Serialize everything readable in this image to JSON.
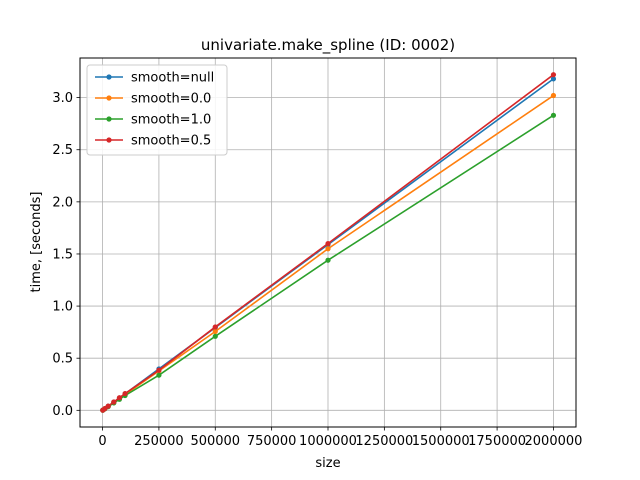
{
  "chart_data": {
    "type": "line",
    "title": "univariate.make_spline (ID: 0002)",
    "xlabel": "size",
    "ylabel": "time, [seconds]",
    "xlim": [
      -100000,
      2100000
    ],
    "ylim": [
      -0.16,
      3.38
    ],
    "xticks": [
      0,
      250000,
      500000,
      750000,
      1000000,
      1250000,
      1500000,
      1750000,
      2000000
    ],
    "xtick_labels": [
      "0",
      "250000",
      "500000",
      "750000",
      "1000000",
      "1250000",
      "1500000",
      "1750000",
      "2000000"
    ],
    "yticks": [
      0.0,
      0.5,
      1.0,
      1.5,
      2.0,
      2.5,
      3.0
    ],
    "ytick_labels": [
      "0.0",
      "0.5",
      "1.0",
      "1.5",
      "2.0",
      "2.5",
      "3.0"
    ],
    "grid": true,
    "legend": "upper-left",
    "x": [
      1000,
      10000,
      25000,
      50000,
      75000,
      100000,
      250000,
      500000,
      1000000,
      2000000
    ],
    "series": [
      {
        "name": "smooth=null",
        "color": "#1f77b4",
        "values": [
          0.0016,
          0.016,
          0.04,
          0.079,
          0.119,
          0.159,
          0.397,
          0.794,
          1.59,
          3.18
        ]
      },
      {
        "name": "smooth=0.0",
        "color": "#ff7f0e",
        "values": [
          0.0015,
          0.015,
          0.038,
          0.076,
          0.114,
          0.151,
          0.378,
          0.756,
          1.55,
          3.02
        ]
      },
      {
        "name": "smooth=1.0",
        "color": "#2ca02c",
        "values": [
          0.0014,
          0.014,
          0.035,
          0.071,
          0.106,
          0.142,
          0.337,
          0.71,
          1.44,
          2.83
        ]
      },
      {
        "name": "smooth=0.5",
        "color": "#d62728",
        "values": [
          0.0016,
          0.016,
          0.04,
          0.08,
          0.121,
          0.161,
          0.385,
          0.8,
          1.6,
          3.22
        ]
      }
    ]
  }
}
